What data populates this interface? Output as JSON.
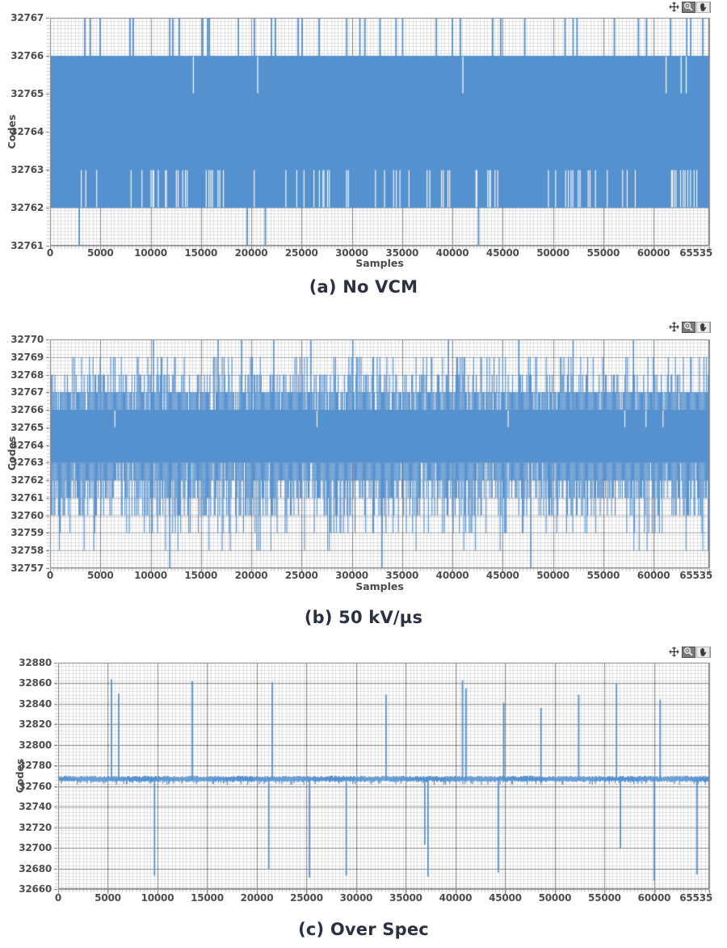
{
  "page": {
    "background": "#FFFFFF"
  },
  "style": {
    "series_blue": "#5691CF",
    "plot_bg": "#FFFFFF",
    "grid_minor": "rgba(0,0,0,0.10)",
    "grid_major_v": "rgba(0,0,0,0.42)",
    "grid_major_h": "rgba(0,0,0,0.25)",
    "grid_major_h_strong": "rgba(0,0,0,0.40)",
    "frame": "#7F7F7F",
    "tick_minor": "#C2C2C2",
    "tick_major": "#6E6E6E",
    "tick_text": "#4D4D4D",
    "axis_title_text": "#4A4A4A",
    "caption_text": "#2B3141"
  },
  "toolbar": {
    "tools": [
      {
        "name": "crosshair-tool-icon",
        "glyph": "crosshair",
        "style": "plain",
        "active": false
      },
      {
        "name": "zoom-tool-icon",
        "glyph": "magnifier",
        "style": "dark",
        "active": true
      },
      {
        "name": "pan-tool-icon",
        "glyph": "hand",
        "style": "light",
        "active": false
      }
    ]
  },
  "chart_data": [
    {
      "id": "a",
      "type": "band-spikes",
      "title": "(a) No VCM",
      "xlabel": "Samples",
      "ylabel": "Codes",
      "xlim": [
        0,
        65535
      ],
      "ylim": [
        32761,
        32767
      ],
      "xticks": [
        0,
        5000,
        10000,
        15000,
        20000,
        25000,
        30000,
        35000,
        40000,
        45000,
        50000,
        55000,
        60000,
        65535
      ],
      "yticks": [
        32761,
        32762,
        32763,
        32764,
        32765,
        32766,
        32767
      ],
      "grid": true,
      "legend": "none",
      "band": [
        32762,
        32766
      ],
      "up_spikes": {
        "level": 32767,
        "samples": [
          3450,
          4000,
          4980,
          7950,
          8270,
          11890,
          12210,
          12850,
          15180,
          15660,
          15830,
          18720,
          20330,
          22010,
          22410,
          24660,
          25060,
          26750,
          29500,
          30800,
          31300,
          32800,
          34400,
          35050,
          38400,
          40000,
          40800,
          44000,
          44800,
          47200,
          51200,
          52000,
          52400,
          56100,
          58500,
          59300,
          61700,
          63300,
          63700,
          64900
        ]
      },
      "down_spikes": {
        "level": 32761,
        "samples": [
          2900,
          19600,
          21400,
          42600
        ]
      },
      "top_notches": {
        "level": 32765,
        "samples": [
          14200,
          20600,
          41000,
          61200,
          62700,
          63200
        ]
      },
      "bottom_notches": {
        "level": 32763,
        "base_density": 0.05,
        "cluster_density": 0.22,
        "clusters": [
          [
            9800,
            13600
          ],
          [
            15200,
            17200
          ],
          [
            24200,
            27400
          ],
          [
            32800,
            35200
          ],
          [
            42800,
            44600
          ],
          [
            51200,
            54200
          ],
          [
            60800,
            64400
          ]
        ]
      },
      "seed": 1337
    },
    {
      "id": "b",
      "type": "band-noise",
      "title": "(b) 50 kV/µs",
      "xlabel": "Samples",
      "ylabel": "Codes",
      "xlim": [
        0,
        65535
      ],
      "ylim": [
        32757,
        32770
      ],
      "xticks": [
        0,
        5000,
        10000,
        15000,
        20000,
        25000,
        30000,
        35000,
        40000,
        45000,
        50000,
        55000,
        60000,
        65535
      ],
      "yticks": [
        32757,
        32758,
        32759,
        32760,
        32761,
        32762,
        32763,
        32764,
        32765,
        32766,
        32767,
        32768,
        32769,
        32770
      ],
      "grid": true,
      "legend": "none",
      "band": [
        32763,
        32766
      ],
      "up_level_weights": [
        [
          32767,
          0.5
        ],
        [
          32768,
          0.27
        ],
        [
          32769,
          0.13
        ]
      ],
      "down_level_weights": [
        [
          32762,
          0.3
        ],
        [
          32761,
          0.28
        ],
        [
          32760,
          0.22
        ],
        [
          32759,
          0.1
        ],
        [
          32758,
          0.04
        ]
      ],
      "up_extremes": {
        "level": 32770,
        "samples": [
          10280,
          16700,
          19030,
          22240,
          25940,
          30100,
          39600,
          46600,
          52000,
          58000
        ]
      },
      "down_extremes": {
        "level": 32757,
        "samples": [
          11900,
          33000,
          47800
        ]
      },
      "top_notches": {
        "level": 32765,
        "samples": [
          6400,
          26500,
          45500,
          57100,
          59200,
          60900
        ]
      },
      "seed": 2024
    },
    {
      "id": "c",
      "type": "baseline-spikes",
      "title": "(c) Over Spec",
      "xlabel": "",
      "ylabel": "Codes",
      "xlim": [
        0,
        65535
      ],
      "ylim": [
        32660,
        32880
      ],
      "xticks": [
        0,
        5000,
        10000,
        15000,
        20000,
        25000,
        30000,
        35000,
        40000,
        45000,
        50000,
        55000,
        60000,
        65535
      ],
      "yticks": [
        32660,
        32680,
        32700,
        32720,
        32740,
        32760,
        32780,
        32800,
        32820,
        32840,
        32860,
        32880
      ],
      "grid": true,
      "legend": "none",
      "baseline": {
        "center": 32767,
        "spread_top": 32770,
        "spread_bottom": 32764
      },
      "up_spikes": [
        [
          5370,
          32864
        ],
        [
          6100,
          32850
        ],
        [
          13500,
          32862
        ],
        [
          21550,
          32861
        ],
        [
          33000,
          32849
        ],
        [
          40700,
          32863
        ],
        [
          41050,
          32855
        ],
        [
          44850,
          32841
        ],
        [
          48600,
          32836
        ],
        [
          52400,
          32849
        ],
        [
          56200,
          32860
        ],
        [
          60600,
          32844
        ]
      ],
      "down_spikes": [
        [
          9700,
          32673
        ],
        [
          21200,
          32679
        ],
        [
          25300,
          32671
        ],
        [
          29000,
          32673
        ],
        [
          36900,
          32703
        ],
        [
          37230,
          32672
        ],
        [
          44300,
          32676
        ],
        [
          56600,
          32700
        ],
        [
          60000,
          32668
        ],
        [
          64300,
          32674
        ]
      ],
      "seed": 99
    }
  ]
}
